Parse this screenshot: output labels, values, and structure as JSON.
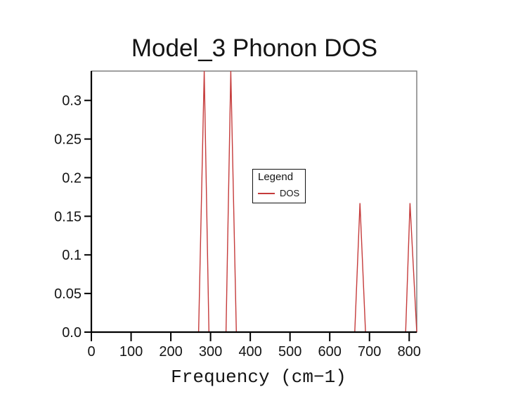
{
  "colors": {
    "background": "#ffffff",
    "curve": "#c53b3b",
    "axis": "#000000",
    "border": "#777777",
    "text": "#141414"
  },
  "legend": {
    "title": "Legend",
    "entries": [
      {
        "label": "DOS",
        "color": "#c53b3b"
      }
    ]
  },
  "chart_data": {
    "type": "line",
    "title": "Model_3 Phonon DOS",
    "xlabel": "Frequency (cm−1)",
    "ylabel": "",
    "xlim": [
      0,
      819
    ],
    "ylim": [
      0,
      0.338
    ],
    "x_tick_values": [
      0,
      100,
      200,
      300,
      400,
      500,
      600,
      700,
      800
    ],
    "x_tick_labels": [
      "0",
      "100",
      "200",
      "300",
      "400",
      "500",
      "600",
      "700",
      "800"
    ],
    "y_tick_values": [
      0.0,
      0.05,
      0.1,
      0.15,
      0.2,
      0.25,
      0.3
    ],
    "y_tick_labels": [
      "0.0",
      "0.05",
      "0.1",
      "0.15",
      "0.2",
      "0.25",
      "0.3"
    ],
    "grid": false,
    "legend_position": "inside center-right",
    "peaks_cm1": [
      284,
      351,
      676,
      802
    ],
    "peak_heights": [
      0.338,
      0.338,
      0.167,
      0.167
    ],
    "peak_note": "First two triangular peaks reach the top of the y-axis (clipped); last peak's right flank ends at the right axis border.",
    "series": [
      {
        "name": "DOS",
        "color": "#c53b3b",
        "points": [
          [
            0,
            0
          ],
          [
            270,
            0
          ],
          [
            284,
            0.338
          ],
          [
            296,
            0
          ],
          [
            339,
            0
          ],
          [
            351,
            0.338
          ],
          [
            365,
            0
          ],
          [
            663,
            0
          ],
          [
            676,
            0.167
          ],
          [
            690,
            0
          ],
          [
            791,
            0
          ],
          [
            802,
            0.167
          ],
          [
            819,
            0
          ]
        ]
      }
    ]
  }
}
